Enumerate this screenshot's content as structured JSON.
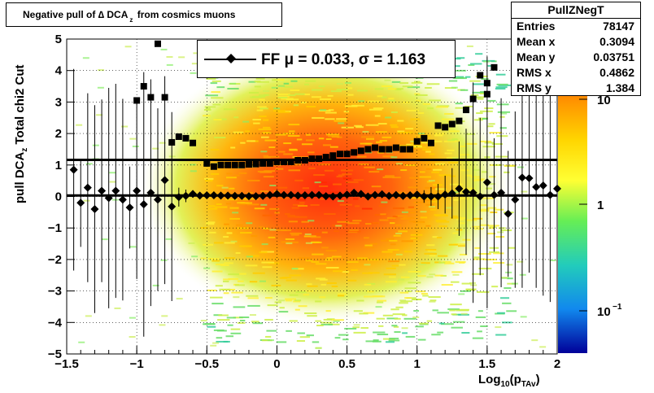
{
  "title": {
    "prefix": "Negative pull of ",
    "delta": "∆",
    "middle": " DCA",
    "sub": "z",
    "suffix": " from cosmics muons"
  },
  "stats": {
    "name": "PullZNegT",
    "rows": [
      {
        "label": "Entries",
        "value": "78147"
      },
      {
        "label": "Mean x",
        "value": "0.3094"
      },
      {
        "label": "Mean y",
        "value": "0.03751"
      },
      {
        "label": "RMS x",
        "value": "0.4862"
      },
      {
        "label": "RMS y",
        "value": "1.384"
      }
    ]
  },
  "legend": {
    "text": "FF μ =  0.033, σ =   1.163"
  },
  "ylabel": {
    "main": "pull DCA",
    "sub": "z",
    "rest": "   Total chi2 Cut"
  },
  "xlabel": {
    "main": "Log",
    "sub": "10",
    "rest": "(p",
    "sub2": "TAv",
    "close": ")"
  },
  "colors": {
    "hot": "#ff2a00",
    "warm": "#ff9900",
    "mid": "#ffee00",
    "cool": "#33dd66",
    "cold": "#00ccff",
    "deep": "#0000aa"
  },
  "chart_data": {
    "type": "heatmap",
    "xlim": [
      -1.5,
      2
    ],
    "ylim": [
      -5,
      5
    ],
    "xticks": [
      "−1.5",
      "−1",
      "−0.5",
      "0",
      "0.5",
      "1",
      "1.5",
      "2"
    ],
    "xtick_values": [
      -1.5,
      -1,
      -0.5,
      0,
      0.5,
      1,
      1.5,
      2
    ],
    "yticks": [
      "−5",
      "−4",
      "−3",
      "−2",
      "−1",
      "0",
      "1",
      "2",
      "3",
      "4",
      "5"
    ],
    "ytick_values": [
      -5,
      -4,
      -3,
      -2,
      -1,
      0,
      1,
      2,
      3,
      4,
      5
    ],
    "zaxis": {
      "labels": [
        "10",
        "1",
        "10"
      ],
      "exponents": [
        "",
        "",
        "−1"
      ],
      "scale": "log"
    },
    "grid": true,
    "reference_lines": [
      0.033,
      1.163
    ],
    "series": [
      {
        "marker": "diamond",
        "x": [
          -1.45,
          -1.4,
          -1.35,
          -1.3,
          -1.25,
          -1.2,
          -1.15,
          -1.1,
          -1.05,
          -1,
          -0.95,
          -0.9,
          -0.85,
          -0.8,
          -0.75,
          -0.7,
          -0.65,
          -0.6,
          -0.55,
          -0.5,
          -0.45,
          -0.4,
          -0.35,
          -0.3,
          -0.25,
          -0.2,
          -0.15,
          -0.1,
          -0.05,
          0,
          0.05,
          0.1,
          0.15,
          0.2,
          0.25,
          0.3,
          0.35,
          0.4,
          0.45,
          0.5,
          0.55,
          0.6,
          0.65,
          0.7,
          0.75,
          0.8,
          0.85,
          0.9,
          0.95,
          1,
          1.05,
          1.1,
          1.15,
          1.2,
          1.25,
          1.3,
          1.35,
          1.4,
          1.45,
          1.5,
          1.55,
          1.6,
          1.65,
          1.7,
          1.75,
          1.8,
          1.85,
          1.9,
          1.95,
          2
        ],
        "y": [
          0.85,
          -0.2,
          0.28,
          -0.4,
          0.18,
          -0.05,
          0.18,
          -0.1,
          -0.35,
          0.18,
          -0.25,
          0.12,
          -0.1,
          0.52,
          -0.32,
          -0.02,
          0.02,
          0.08,
          0.03,
          0.04,
          0.04,
          0.03,
          0.03,
          0.02,
          0.02,
          0.01,
          0.01,
          0.02,
          0.05,
          0.08,
          0.05,
          0.05,
          0.03,
          0.04,
          0.05,
          0.05,
          0.01,
          0.0,
          0.03,
          0.06,
          0.12,
          0.08,
          0.0,
          0.05,
          0.07,
          0.02,
          0.05,
          0.02,
          0.04,
          0.06,
          0.0,
          0.0,
          0.0,
          0.06,
          0.1,
          0.25,
          0.15,
          0.12,
          0.0,
          0.45,
          0.05,
          0.12,
          -0.55,
          -0.1,
          0.6,
          0.58,
          0.3,
          0.35,
          0.05,
          0.25
        ],
        "yerr": [
          3.2,
          1.4,
          3.0,
          3.3,
          2.9,
          3.5,
          3.4,
          3.2,
          1.3,
          2.8,
          4.2,
          3.6,
          2.9,
          3.3,
          3.0,
          0.3,
          0.2,
          0.1,
          0.05,
          0.05,
          0.05,
          0.05,
          0.05,
          0.05,
          0.05,
          0.05,
          0.05,
          0.05,
          0.05,
          0.05,
          0.05,
          0.05,
          0.05,
          0.05,
          0.05,
          0.05,
          0.05,
          0.05,
          0.05,
          0.05,
          0.05,
          0.05,
          0.05,
          0.05,
          0.05,
          0.05,
          0.05,
          0.05,
          0.05,
          0.1,
          0.2,
          0.3,
          0.4,
          0.6,
          0.8,
          1.5,
          2.0,
          3.5,
          2.5,
          4.0,
          1.8,
          3.0,
          2.0,
          2.8,
          3.5,
          3.0,
          3.2,
          3.5,
          3.4,
          3.8
        ]
      },
      {
        "marker": "square",
        "x": [
          -1,
          -0.95,
          -0.9,
          -0.85,
          -0.8,
          -0.75,
          -0.7,
          -0.65,
          -0.6,
          -0.5,
          -0.45,
          -0.4,
          -0.35,
          -0.3,
          -0.25,
          -0.2,
          -0.15,
          -0.1,
          -0.05,
          0,
          0.05,
          0.1,
          0.15,
          0.2,
          0.25,
          0.3,
          0.35,
          0.4,
          0.45,
          0.5,
          0.55,
          0.6,
          0.65,
          0.7,
          0.75,
          0.8,
          0.85,
          0.9,
          0.95,
          1,
          1.05,
          1.1,
          1.15,
          1.2,
          1.25,
          1.3,
          1.35,
          1.4,
          1.45,
          1.5
        ],
        "y": [
          3.05,
          3.5,
          3.15,
          4.85,
          3.15,
          1.72,
          1.9,
          1.85,
          1.7,
          1.05,
          0.95,
          1.0,
          1.0,
          1.0,
          1.0,
          1.02,
          1.03,
          1.05,
          1.05,
          1.1,
          1.1,
          1.1,
          1.15,
          1.15,
          1.2,
          1.2,
          1.25,
          1.3,
          1.35,
          1.35,
          1.4,
          1.45,
          1.5,
          1.55,
          1.5,
          1.5,
          1.55,
          1.5,
          1.5,
          1.75,
          1.85,
          1.7,
          2.25,
          2.2,
          2.3,
          2.4,
          2.75,
          3.1,
          3.85,
          3.25
        ],
        "y_extra": [
          {
            "x": 1.5,
            "y": 3.6
          },
          {
            "x": 1.55,
            "y": 4.1
          }
        ]
      }
    ]
  }
}
